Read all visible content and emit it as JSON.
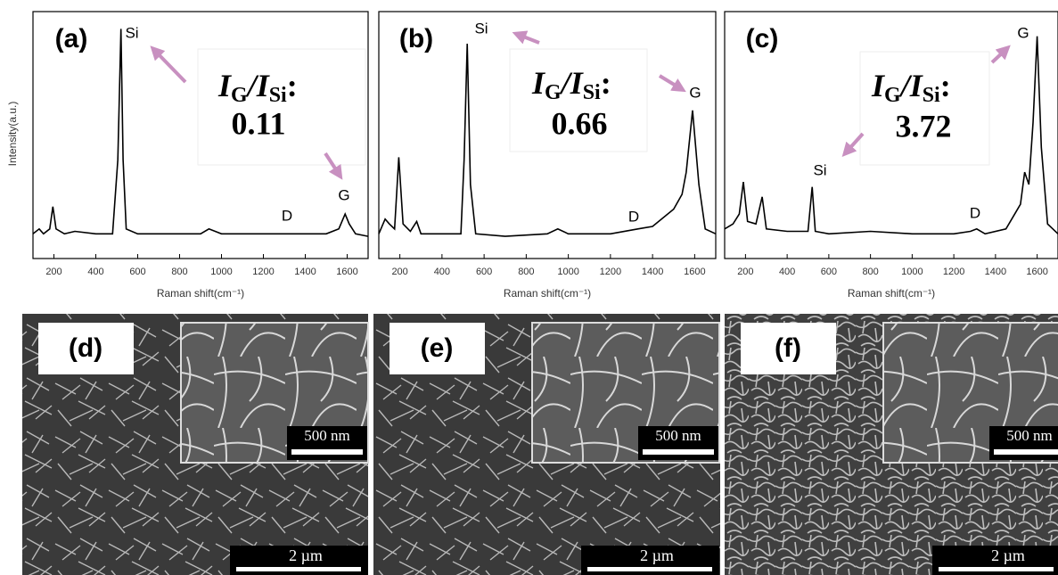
{
  "chart_data": [
    {
      "type": "line",
      "panel_label": "(a)",
      "xlabel": "Raman shift(cm⁻¹)",
      "ylabel": "Intensity(a.u.)",
      "xlim": [
        100,
        1700
      ],
      "ylim": [
        0,
        100
      ],
      "xticks": [
        200,
        400,
        600,
        800,
        1000,
        1200,
        1400,
        1600
      ],
      "color": "#000000",
      "x": [
        100,
        130,
        150,
        180,
        195,
        210,
        250,
        300,
        400,
        480,
        505,
        520,
        530,
        545,
        600,
        700,
        900,
        940,
        970,
        1000,
        1200,
        1400,
        1500,
        1560,
        1590,
        1610,
        1640,
        1700
      ],
      "values": [
        10,
        12,
        10,
        12,
        21,
        12,
        10,
        11,
        10,
        10,
        40,
        93,
        40,
        12,
        10,
        10,
        10,
        12,
        11,
        10,
        10,
        10,
        10,
        12,
        18,
        14,
        10,
        9
      ],
      "peak_labels": [
        "Si",
        "G",
        "D"
      ],
      "ratio_label": [
        "I",
        "G",
        "/I",
        "Si",
        ":"
      ],
      "ratio_value": "0.11"
    },
    {
      "type": "line",
      "panel_label": "(b)",
      "xlabel": "Raman shift(cm⁻¹)",
      "xlim": [
        100,
        1700
      ],
      "ylim": [
        0,
        100
      ],
      "xticks": [
        200,
        400,
        600,
        800,
        1000,
        1200,
        1400,
        1600
      ],
      "color": "#000000",
      "x": [
        100,
        130,
        150,
        175,
        195,
        215,
        250,
        280,
        300,
        400,
        490,
        505,
        520,
        535,
        560,
        700,
        900,
        950,
        1000,
        1200,
        1330,
        1400,
        1500,
        1540,
        1560,
        1590,
        1620,
        1650,
        1700
      ],
      "values": [
        10,
        16,
        14,
        12,
        41,
        14,
        11,
        15,
        10,
        10,
        10,
        40,
        87,
        30,
        10,
        9,
        10,
        12,
        10,
        10,
        12,
        13,
        20,
        26,
        35,
        60,
        30,
        12,
        10
      ],
      "peak_labels": [
        "Si",
        "G",
        "D"
      ],
      "ratio_label": [
        "I",
        "G",
        "/I",
        "Si",
        ":"
      ],
      "ratio_value": "0.66"
    },
    {
      "type": "line",
      "panel_label": "(c)",
      "xlabel": "Raman shift(cm⁻¹)",
      "xlim": [
        100,
        1700
      ],
      "ylim": [
        0,
        100
      ],
      "xticks": [
        200,
        400,
        600,
        800,
        1000,
        1200,
        1400,
        1600
      ],
      "color": "#000000",
      "x": [
        100,
        140,
        170,
        190,
        210,
        250,
        280,
        300,
        400,
        500,
        520,
        535,
        600,
        800,
        1000,
        1200,
        1280,
        1310,
        1350,
        1450,
        1520,
        1540,
        1560,
        1580,
        1600,
        1620,
        1650,
        1700
      ],
      "values": [
        12,
        14,
        18,
        31,
        15,
        14,
        25,
        12,
        11,
        11,
        29,
        11,
        10,
        11,
        10,
        10,
        11,
        12,
        10,
        12,
        22,
        35,
        30,
        55,
        90,
        45,
        14,
        10
      ],
      "peak_labels": [
        "Si",
        "G",
        "D"
      ],
      "ratio_label": [
        "I",
        "G",
        "/I",
        "Si",
        ":"
      ],
      "ratio_value": "3.72"
    }
  ],
  "images": [
    {
      "label": "(d)",
      "inset_scale": "500 nm",
      "scale": "2 µm"
    },
    {
      "label": "(e)",
      "inset_scale": "500 nm",
      "scale": "2 µm"
    },
    {
      "label": "(f)",
      "inset_scale": "500 nm",
      "scale": "2 µm"
    }
  ]
}
